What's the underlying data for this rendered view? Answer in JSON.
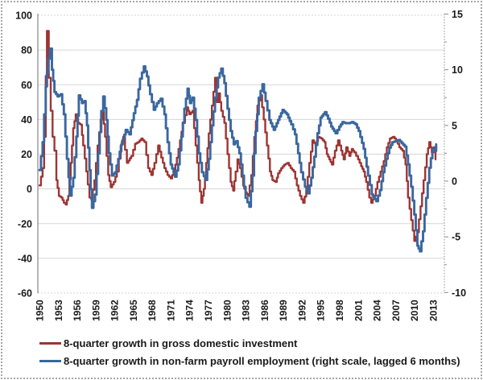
{
  "figure": {
    "legend": [
      {
        "label": "8-quarter growth in gross domestic investment",
        "color": "#9d3533"
      },
      {
        "label": "8-quarter growth in non-farm payroll employment (right scale, lagged 6 months)",
        "color": "#3a679f"
      }
    ],
    "colors": {
      "grid": "#d6d6d6",
      "axis": "#8f8f8f",
      "frame_border": "#a6a6a6",
      "tick_text": "#1a1a1a"
    }
  },
  "chart_data": {
    "type": "line",
    "title": "",
    "xlabel": "",
    "ylabel": "",
    "grid": true,
    "legend_position": "bottom-left",
    "left_axis": {
      "ticks": [
        100,
        80,
        60,
        40,
        20,
        0,
        -20,
        -40,
        -60
      ],
      "range": [
        -60,
        100
      ]
    },
    "right_axis": {
      "ticks": [
        15,
        10,
        5,
        0,
        -5,
        -10
      ],
      "range": [
        -10,
        15
      ],
      "minor_tick_step": 2.5
    },
    "x_axis": {
      "tick_years": [
        "1950",
        "1953",
        "1956",
        "1959",
        "1962",
        "1965",
        "1968",
        "1971",
        "1974",
        "1977",
        "1980",
        "1983",
        "1986",
        "1989",
        "1992",
        "1995",
        "1998",
        "2001",
        "2004",
        "2007",
        "2010",
        "2013"
      ],
      "range": [
        1950,
        2013.8
      ]
    },
    "series": [
      {
        "name": "8-quarter growth in gross domestic investment",
        "axis": "left",
        "color": "#9d3533",
        "points": [
          [
            1950.0,
            2
          ],
          [
            1950.5,
            12
          ],
          [
            1950.75,
            30
          ],
          [
            1951.0,
            65
          ],
          [
            1951.2,
            91
          ],
          [
            1951.5,
            64
          ],
          [
            1951.8,
            45
          ],
          [
            1952.1,
            30
          ],
          [
            1952.4,
            22
          ],
          [
            1952.7,
            5
          ],
          [
            1953.1,
            -4
          ],
          [
            1953.5,
            -5
          ],
          [
            1953.9,
            -8
          ],
          [
            1954.2,
            -9
          ],
          [
            1954.6,
            -4
          ],
          [
            1955.0,
            15
          ],
          [
            1955.4,
            35
          ],
          [
            1955.8,
            43
          ],
          [
            1956.2,
            38
          ],
          [
            1956.6,
            37
          ],
          [
            1957.0,
            25
          ],
          [
            1957.5,
            10
          ],
          [
            1958.0,
            -5
          ],
          [
            1958.3,
            -6
          ],
          [
            1958.8,
            5
          ],
          [
            1959.3,
            25
          ],
          [
            1959.8,
            40
          ],
          [
            1960.1,
            45
          ],
          [
            1960.5,
            30
          ],
          [
            1961.0,
            8
          ],
          [
            1961.4,
            1
          ],
          [
            1961.9,
            4
          ],
          [
            1962.4,
            10
          ],
          [
            1963.0,
            25
          ],
          [
            1963.4,
            30
          ],
          [
            1964.0,
            15
          ],
          [
            1964.7,
            19
          ],
          [
            1965.3,
            26
          ],
          [
            1965.8,
            27
          ],
          [
            1966.3,
            29
          ],
          [
            1966.8,
            27
          ],
          [
            1967.4,
            12
          ],
          [
            1967.9,
            8
          ],
          [
            1968.4,
            15
          ],
          [
            1969.0,
            25
          ],
          [
            1969.5,
            18
          ],
          [
            1970.0,
            12
          ],
          [
            1970.5,
            8
          ],
          [
            1971.0,
            6
          ],
          [
            1971.5,
            10
          ],
          [
            1972.0,
            18
          ],
          [
            1972.5,
            28
          ],
          [
            1973.0,
            38
          ],
          [
            1973.6,
            47
          ],
          [
            1974.0,
            43
          ],
          [
            1974.5,
            45
          ],
          [
            1975.0,
            25
          ],
          [
            1975.5,
            5
          ],
          [
            1975.9,
            -8
          ],
          [
            1976.3,
            0
          ],
          [
            1976.7,
            15
          ],
          [
            1977.1,
            32
          ],
          [
            1977.6,
            48
          ],
          [
            1978.1,
            64
          ],
          [
            1978.4,
            50
          ],
          [
            1978.7,
            55
          ],
          [
            1979.1,
            45
          ],
          [
            1979.6,
            38
          ],
          [
            1980.1,
            20
          ],
          [
            1980.6,
            4
          ],
          [
            1981.0,
            -1
          ],
          [
            1981.4,
            10
          ],
          [
            1981.7,
            17
          ],
          [
            1982.1,
            12
          ],
          [
            1982.6,
            2
          ],
          [
            1983.0,
            -2
          ],
          [
            1983.4,
            -4
          ],
          [
            1983.9,
            8
          ],
          [
            1984.4,
            30
          ],
          [
            1984.9,
            48
          ],
          [
            1985.4,
            54
          ],
          [
            1985.9,
            40
          ],
          [
            1986.4,
            25
          ],
          [
            1986.9,
            10
          ],
          [
            1987.3,
            5
          ],
          [
            1987.8,
            4
          ],
          [
            1988.2,
            9
          ],
          [
            1988.7,
            12
          ],
          [
            1989.2,
            14
          ],
          [
            1989.7,
            15
          ],
          [
            1990.2,
            12
          ],
          [
            1990.7,
            10
          ],
          [
            1991.2,
            2
          ],
          [
            1991.7,
            -4
          ],
          [
            1992.2,
            -8
          ],
          [
            1992.7,
            -1
          ],
          [
            1993.2,
            15
          ],
          [
            1993.7,
            28
          ],
          [
            1994.2,
            25
          ],
          [
            1994.6,
            30
          ],
          [
            1995.1,
            29
          ],
          [
            1995.6,
            27
          ],
          [
            1996.0,
            20
          ],
          [
            1996.4,
            17
          ],
          [
            1996.8,
            14
          ],
          [
            1997.3,
            22
          ],
          [
            1997.8,
            28
          ],
          [
            1998.3,
            22
          ],
          [
            1998.7,
            17
          ],
          [
            1999.1,
            24
          ],
          [
            1999.6,
            19
          ],
          [
            2000.0,
            23
          ],
          [
            2000.4,
            21
          ],
          [
            2001.0,
            17
          ],
          [
            2001.5,
            13
          ],
          [
            2001.9,
            10
          ],
          [
            2002.3,
            4
          ],
          [
            2002.8,
            -5
          ],
          [
            2003.1,
            -8
          ],
          [
            2003.6,
            -4
          ],
          [
            2004.1,
            4
          ],
          [
            2004.6,
            10
          ],
          [
            2005.1,
            16
          ],
          [
            2005.6,
            24
          ],
          [
            2006.1,
            29
          ],
          [
            2006.6,
            30
          ],
          [
            2007.1,
            28
          ],
          [
            2007.6,
            24
          ],
          [
            2008.1,
            22
          ],
          [
            2008.6,
            14
          ],
          [
            2009.0,
            -5
          ],
          [
            2009.5,
            -18
          ],
          [
            2010.0,
            -30
          ],
          [
            2010.5,
            -25
          ],
          [
            2011.0,
            -10
          ],
          [
            2011.5,
            5
          ],
          [
            2012.0,
            20
          ],
          [
            2012.4,
            27
          ],
          [
            2012.8,
            21
          ],
          [
            2013.1,
            24
          ],
          [
            2013.4,
            17
          ]
        ]
      },
      {
        "name": "8-quarter growth in non-farm payroll employment (right scale, lagged 6 months)",
        "axis": "right",
        "color": "#3a679f",
        "points": [
          [
            1950.0,
            1.0
          ],
          [
            1950.5,
            3.5
          ],
          [
            1951.0,
            8.5
          ],
          [
            1951.4,
            11.0
          ],
          [
            1951.7,
            11.9
          ],
          [
            1952.0,
            10.0
          ],
          [
            1952.4,
            8.0
          ],
          [
            1952.9,
            7.6
          ],
          [
            1953.4,
            7.8
          ],
          [
            1953.9,
            6.0
          ],
          [
            1954.4,
            2.0
          ],
          [
            1954.9,
            -1.3
          ],
          [
            1955.4,
            0.3
          ],
          [
            1955.9,
            4.0
          ],
          [
            1956.3,
            7.7
          ],
          [
            1956.8,
            7.0
          ],
          [
            1957.2,
            7.2
          ],
          [
            1957.6,
            5.0
          ],
          [
            1958.0,
            1.0
          ],
          [
            1958.4,
            -2.4
          ],
          [
            1958.9,
            -1.2
          ],
          [
            1959.4,
            2.5
          ],
          [
            1959.9,
            6.3
          ],
          [
            1960.2,
            7.6
          ],
          [
            1960.7,
            5.5
          ],
          [
            1961.1,
            2.5
          ],
          [
            1961.6,
            0.5
          ],
          [
            1962.1,
            0.8
          ],
          [
            1962.6,
            2.0
          ],
          [
            1963.1,
            3.3
          ],
          [
            1963.8,
            4.6
          ],
          [
            1964.4,
            4.2
          ],
          [
            1965.1,
            6.1
          ],
          [
            1965.6,
            7.3
          ],
          [
            1966.1,
            9.2
          ],
          [
            1966.7,
            10.3
          ],
          [
            1967.2,
            9.4
          ],
          [
            1967.7,
            7.8
          ],
          [
            1968.3,
            6.4
          ],
          [
            1968.8,
            7.0
          ],
          [
            1969.4,
            7.4
          ],
          [
            1970.0,
            6.0
          ],
          [
            1970.5,
            3.5
          ],
          [
            1971.0,
            1.5
          ],
          [
            1971.7,
            0.4
          ],
          [
            1972.2,
            1.5
          ],
          [
            1972.7,
            4.0
          ],
          [
            1973.2,
            6.5
          ],
          [
            1973.7,
            8.3
          ],
          [
            1974.1,
            7.0
          ],
          [
            1974.5,
            7.5
          ],
          [
            1975.0,
            5.5
          ],
          [
            1975.5,
            2.5
          ],
          [
            1976.0,
            0.8
          ],
          [
            1976.6,
            0.1
          ],
          [
            1977.1,
            2.0
          ],
          [
            1977.6,
            5.0
          ],
          [
            1978.1,
            7.5
          ],
          [
            1978.6,
            9.3
          ],
          [
            1979.1,
            10.1
          ],
          [
            1979.6,
            8.8
          ],
          [
            1980.1,
            6.5
          ],
          [
            1980.6,
            4.5
          ],
          [
            1981.1,
            3.3
          ],
          [
            1981.5,
            3.6
          ],
          [
            1982.0,
            2.5
          ],
          [
            1982.5,
            0.5
          ],
          [
            1983.0,
            -1.5
          ],
          [
            1983.6,
            -2.3
          ],
          [
            1984.1,
            0.5
          ],
          [
            1984.6,
            4.5
          ],
          [
            1985.1,
            7.5
          ],
          [
            1985.7,
            8.7
          ],
          [
            1986.2,
            7.2
          ],
          [
            1986.8,
            5.5
          ],
          [
            1987.5,
            4.6
          ],
          [
            1988.2,
            5.5
          ],
          [
            1988.9,
            6.4
          ],
          [
            1989.6,
            6.0
          ],
          [
            1990.3,
            5.1
          ],
          [
            1990.9,
            4.2
          ],
          [
            1991.4,
            2.5
          ],
          [
            1991.9,
            0.8
          ],
          [
            1992.5,
            -0.5
          ],
          [
            1993.0,
            -1.1
          ],
          [
            1993.5,
            0.3
          ],
          [
            1994.0,
            2.2
          ],
          [
            1994.5,
            4.3
          ],
          [
            1995.0,
            5.7
          ],
          [
            1995.7,
            6.2
          ],
          [
            1996.2,
            5.6
          ],
          [
            1996.7,
            4.9
          ],
          [
            1997.4,
            4.3
          ],
          [
            1998.0,
            4.9
          ],
          [
            1998.5,
            5.3
          ],
          [
            1999.0,
            5.2
          ],
          [
            1999.5,
            5.2
          ],
          [
            2000.0,
            5.3
          ],
          [
            2000.6,
            5.1
          ],
          [
            2001.1,
            4.5
          ],
          [
            2001.9,
            2.9
          ],
          [
            2002.6,
            0.5
          ],
          [
            2003.2,
            -1.2
          ],
          [
            2003.9,
            -1.8
          ],
          [
            2004.5,
            -0.8
          ],
          [
            2005.0,
            0.8
          ],
          [
            2005.5,
            2.0
          ],
          [
            2006.0,
            3.0
          ],
          [
            2006.5,
            3.5
          ],
          [
            2007.0,
            3.6
          ],
          [
            2007.5,
            3.7
          ],
          [
            2008.0,
            3.4
          ],
          [
            2008.5,
            3.1
          ],
          [
            2009.0,
            1.5
          ],
          [
            2009.5,
            -0.5
          ],
          [
            2010.0,
            -3.0
          ],
          [
            2010.5,
            -5.8
          ],
          [
            2010.9,
            -6.3
          ],
          [
            2011.4,
            -4.5
          ],
          [
            2011.9,
            -1.5
          ],
          [
            2012.4,
            1.2
          ],
          [
            2012.9,
            2.9
          ],
          [
            2013.2,
            2.7
          ],
          [
            2013.5,
            3.3
          ]
        ]
      }
    ]
  }
}
